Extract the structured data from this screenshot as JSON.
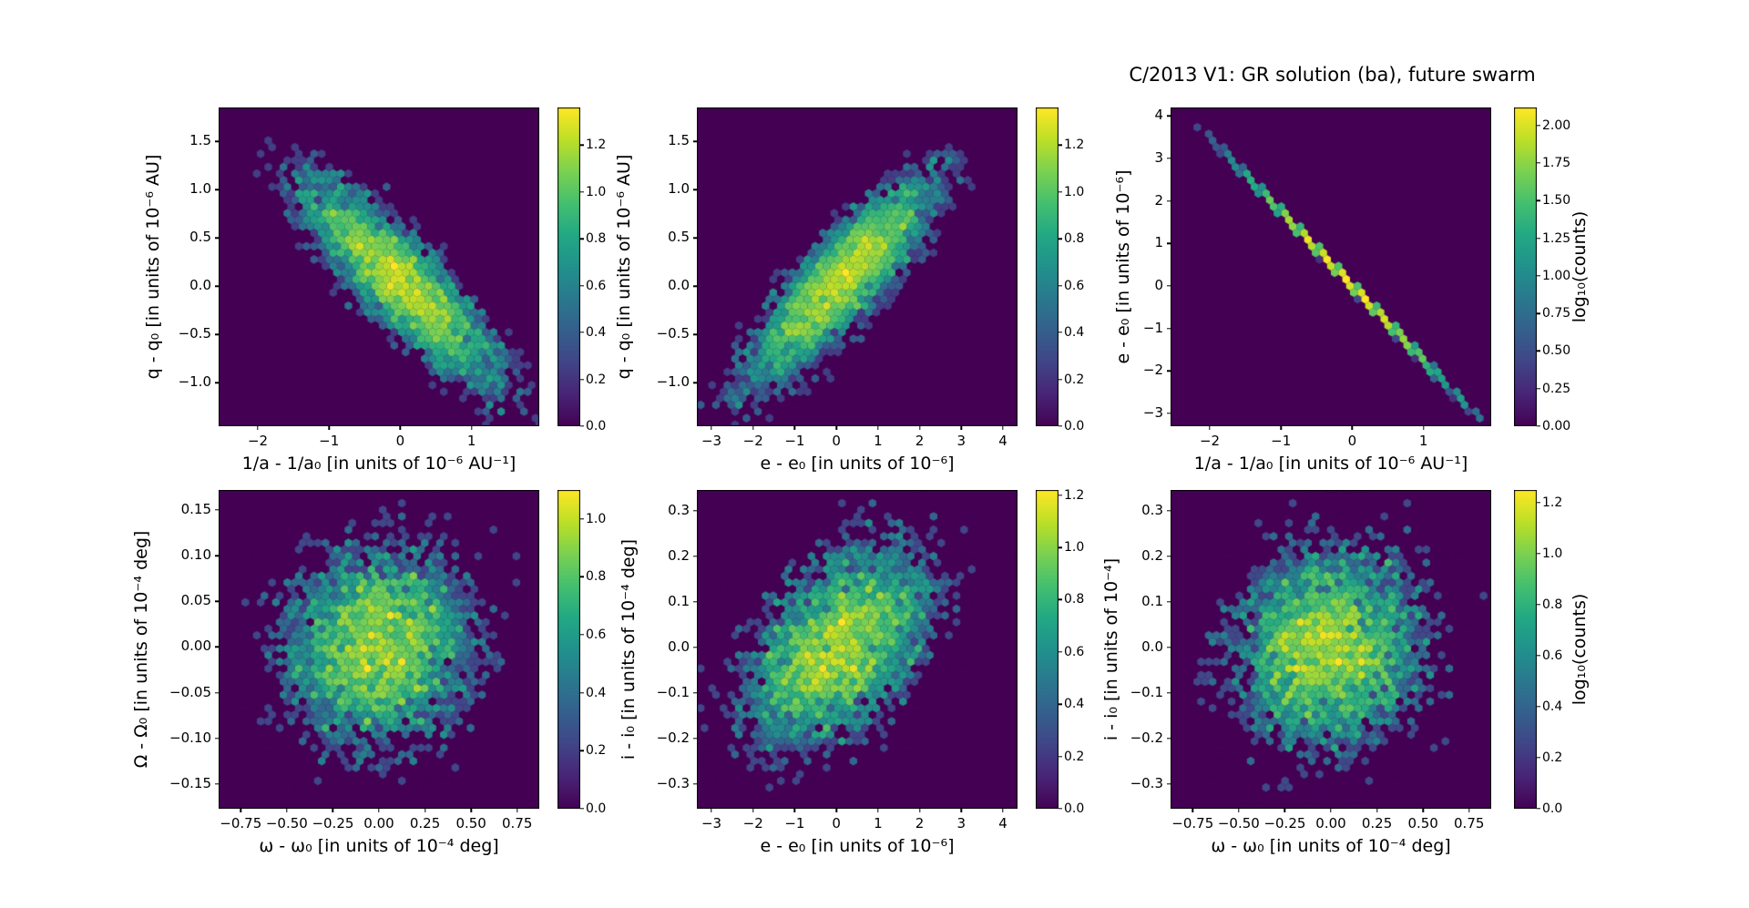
{
  "figure": {
    "title": "C/2013 V1: GR solution (ba), future swarm",
    "background_color": "#ffffff",
    "axes_background_color": "#440154",
    "peak_color": "#fde725",
    "colormap": "viridis",
    "colormap_stops": [
      "#440154",
      "#482475",
      "#414487",
      "#355f8d",
      "#2a788e",
      "#21918c",
      "#22a884",
      "#44bf70",
      "#7ad151",
      "#bddf26",
      "#fde725"
    ]
  },
  "chart_data": [
    {
      "type": "hexbin",
      "name": "q vs 1/a",
      "xlabel": "1/a - 1/a₀ [in units of 10⁻⁶ AU⁻¹]",
      "ylabel": "q - q₀ [in units of 10⁻⁶ AU]",
      "xlim": [
        -2.55,
        1.95
      ],
      "ylim": [
        -1.45,
        1.85
      ],
      "xticks": {
        "values": [
          -2,
          -1,
          0,
          1
        ],
        "labels": [
          "−2",
          "−1",
          "0",
          "1"
        ]
      },
      "yticks": {
        "values": [
          1.5,
          1.0,
          0.5,
          0.0,
          -0.5,
          -1.0
        ],
        "labels": [
          "1.5",
          "1.0",
          "0.5",
          "0.0",
          "−0.5",
          "−1.0"
        ]
      },
      "distribution": {
        "shape": "gaussian-2d",
        "n": 5200,
        "mean": [
          0.0,
          0.05
        ],
        "sigma": [
          0.72,
          0.55
        ],
        "rho": -0.86,
        "seed": 11
      },
      "colorbar": {
        "max": 1.36,
        "tick_values": [
          0.0,
          0.2,
          0.4,
          0.6,
          0.8,
          1.0,
          1.2
        ],
        "tick_labels": [
          "0.0",
          "0.2",
          "0.4",
          "0.6",
          "0.8",
          "1.0",
          "1.2"
        ],
        "label": null
      }
    },
    {
      "type": "hexbin",
      "name": "q vs e",
      "xlabel": "e - e₀ [in units of 10⁻⁶]",
      "ylabel": "q - q₀ [in units of 10⁻⁶ AU]",
      "xlim": [
        -3.35,
        4.35
      ],
      "ylim": [
        -1.45,
        1.85
      ],
      "xticks": {
        "values": [
          -3,
          -2,
          -1,
          0,
          1,
          2,
          3,
          4
        ],
        "labels": [
          "−3",
          "−2",
          "−1",
          "0",
          "1",
          "2",
          "3",
          "4"
        ]
      },
      "yticks": {
        "values": [
          1.5,
          1.0,
          0.5,
          0.0,
          -0.5,
          -1.0
        ],
        "labels": [
          "1.5",
          "1.0",
          "0.5",
          "0.0",
          "−0.5",
          "−1.0"
        ]
      },
      "distribution": {
        "shape": "gaussian-2d",
        "n": 5200,
        "mean": [
          0.1,
          0.05
        ],
        "sigma": [
          1.15,
          0.55
        ],
        "rho": 0.86,
        "seed": 23
      },
      "colorbar": {
        "max": 1.36,
        "tick_values": [
          0.0,
          0.2,
          0.4,
          0.6,
          0.8,
          1.0,
          1.2
        ],
        "tick_labels": [
          "0.0",
          "0.2",
          "0.4",
          "0.6",
          "0.8",
          "1.0",
          "1.2"
        ],
        "label": null
      }
    },
    {
      "type": "hexbin",
      "name": "e vs 1/a",
      "xlabel": "1/a - 1/a₀ [in units of 10⁻⁶ AU⁻¹]",
      "ylabel": "e - e₀ [in units of 10⁻⁶]",
      "xlim": [
        -2.55,
        1.95
      ],
      "ylim": [
        -3.3,
        4.2
      ],
      "xticks": {
        "values": [
          -2,
          -1,
          0,
          1
        ],
        "labels": [
          "−2",
          "−1",
          "0",
          "1"
        ]
      },
      "yticks": {
        "values": [
          4,
          3,
          2,
          1,
          0,
          -1,
          -2,
          -3
        ],
        "labels": [
          "4",
          "3",
          "2",
          "1",
          "0",
          "−1",
          "−2",
          "−3"
        ]
      },
      "distribution": {
        "shape": "gaussian-2d",
        "n": 3500,
        "mean": [
          -0.1,
          0.175
        ],
        "sigma": [
          0.72,
          1.26
        ],
        "rho": -0.99995,
        "seed": 37
      },
      "colorbar": {
        "max": 2.12,
        "tick_values": [
          2.0,
          1.75,
          1.5,
          1.25,
          1.0,
          0.75,
          0.5,
          0.25,
          0.0
        ],
        "tick_labels": [
          "2.00",
          "1.75",
          "1.50",
          "1.25",
          "1.00",
          "0.75",
          "0.50",
          "0.25",
          "0.00"
        ],
        "label": "log₁₀(counts)"
      }
    },
    {
      "type": "hexbin",
      "name": "Omega vs omega",
      "xlabel": "ω - ω₀ [in units of 10⁻⁴ deg]",
      "ylabel": "Ω - Ω₀ [in units of 10⁻⁴ deg]",
      "xlim": [
        -0.87,
        0.87
      ],
      "ylim": [
        -0.177,
        0.172
      ],
      "xticks": {
        "values": [
          -0.75,
          -0.5,
          -0.25,
          0.0,
          0.25,
          0.5,
          0.75
        ],
        "labels": [
          "−0.75",
          "−0.50",
          "−0.25",
          "0.00",
          "0.25",
          "0.50",
          "0.75"
        ]
      },
      "yticks": {
        "values": [
          0.15,
          0.1,
          0.05,
          0.0,
          -0.05,
          -0.1,
          -0.15
        ],
        "labels": [
          "0.15",
          "0.10",
          "0.05",
          "0.00",
          "−0.05",
          "−0.10",
          "−0.15"
        ]
      },
      "distribution": {
        "shape": "gaussian-2d",
        "n": 5200,
        "mean": [
          0.0,
          0.0
        ],
        "sigma": [
          0.27,
          0.056
        ],
        "rho": 0.05,
        "seed": 5
      },
      "colorbar": {
        "max": 1.1,
        "tick_values": [
          0.0,
          0.2,
          0.4,
          0.6,
          0.8,
          1.0
        ],
        "tick_labels": [
          "0.0",
          "0.2",
          "0.4",
          "0.6",
          "0.8",
          "1.0"
        ],
        "label": null
      }
    },
    {
      "type": "hexbin",
      "name": "i vs e",
      "xlabel": "e - e₀ [in units of 10⁻⁶]",
      "ylabel": "i - i₀ [in units of 10⁻⁴ deg]",
      "xlim": [
        -3.35,
        4.35
      ],
      "ylim": [
        -0.355,
        0.345
      ],
      "xticks": {
        "values": [
          -3,
          -2,
          -1,
          0,
          1,
          2,
          3,
          4
        ],
        "labels": [
          "−3",
          "−2",
          "−1",
          "0",
          "1",
          "2",
          "3",
          "4"
        ]
      },
      "yticks": {
        "values": [
          0.3,
          0.2,
          0.1,
          0.0,
          -0.1,
          -0.2,
          -0.3
        ],
        "labels": [
          "0.3",
          "0.2",
          "0.1",
          "0.0",
          "−0.1",
          "−0.2",
          "−0.3"
        ]
      },
      "distribution": {
        "shape": "gaussian-2d",
        "n": 5200,
        "mean": [
          0.05,
          0.0
        ],
        "sigma": [
          1.15,
          0.115
        ],
        "rho": 0.45,
        "seed": 59
      },
      "colorbar": {
        "max": 1.22,
        "tick_values": [
          0.0,
          0.2,
          0.4,
          0.6,
          0.8,
          1.0,
          1.2
        ],
        "tick_labels": [
          "0.0",
          "0.2",
          "0.4",
          "0.6",
          "0.8",
          "1.0",
          "1.2"
        ],
        "label": null
      }
    },
    {
      "type": "hexbin",
      "name": "i vs omega",
      "xlabel": "ω - ω₀ [in units of 10⁻⁴ deg]",
      "ylabel": "i - i₀ [in units of 10⁻⁴]",
      "xlim": [
        -0.87,
        0.87
      ],
      "ylim": [
        -0.355,
        0.345
      ],
      "xticks": {
        "values": [
          -0.75,
          -0.5,
          -0.25,
          0.0,
          0.25,
          0.5,
          0.75
        ],
        "labels": [
          "−0.75",
          "−0.50",
          "−0.25",
          "0.00",
          "0.25",
          "0.50",
          "0.75"
        ]
      },
      "yticks": {
        "values": [
          0.3,
          0.2,
          0.1,
          0.0,
          -0.1,
          -0.2,
          -0.3
        ],
        "labels": [
          "0.3",
          "0.2",
          "0.1",
          "0.0",
          "−0.1",
          "−0.2",
          "−0.3"
        ]
      },
      "distribution": {
        "shape": "gaussian-2d",
        "n": 5200,
        "mean": [
          0.0,
          0.0
        ],
        "sigma": [
          0.27,
          0.115
        ],
        "rho": 0.08,
        "seed": 71
      },
      "colorbar": {
        "max": 1.25,
        "tick_values": [
          0.0,
          0.2,
          0.4,
          0.6,
          0.8,
          1.0,
          1.2
        ],
        "tick_labels": [
          "0.0",
          "0.2",
          "0.4",
          "0.6",
          "0.8",
          "1.0",
          "1.2"
        ],
        "label": "log₁₀(counts)"
      }
    }
  ]
}
